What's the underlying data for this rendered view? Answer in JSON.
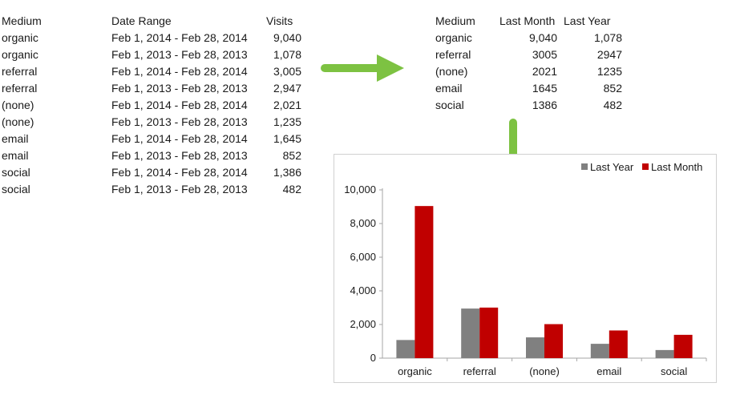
{
  "raw_table": {
    "headers": {
      "medium": "Medium",
      "date_range": "Date Range",
      "visits": "Visits"
    },
    "rows": [
      {
        "medium": "organic",
        "date_range": "Feb 1, 2014 - Feb 28, 2014",
        "visits": "9,040"
      },
      {
        "medium": "organic",
        "date_range": "Feb 1, 2013 - Feb 28, 2013",
        "visits": "1,078"
      },
      {
        "medium": "referral",
        "date_range": "Feb 1, 2014 - Feb 28, 2014",
        "visits": "3,005"
      },
      {
        "medium": "referral",
        "date_range": "Feb 1, 2013 - Feb 28, 2013",
        "visits": "2,947"
      },
      {
        "medium": "(none)",
        "date_range": "Feb 1, 2014 - Feb 28, 2014",
        "visits": "2,021"
      },
      {
        "medium": "(none)",
        "date_range": "Feb 1, 2013 - Feb 28, 2013",
        "visits": "1,235"
      },
      {
        "medium": "email",
        "date_range": "Feb 1, 2014 - Feb 28, 2014",
        "visits": "1,645"
      },
      {
        "medium": "email",
        "date_range": "Feb 1, 2013 - Feb 28, 2013",
        "visits": "852"
      },
      {
        "medium": "social",
        "date_range": "Feb 1, 2014 - Feb 28, 2014",
        "visits": "1,386"
      },
      {
        "medium": "social",
        "date_range": "Feb 1, 2013 - Feb 28, 2013",
        "visits": "482"
      }
    ]
  },
  "pivot_table": {
    "headers": {
      "medium": "Medium",
      "last_month": "Last Month",
      "last_year": "Last Year"
    },
    "rows": [
      {
        "medium": "organic",
        "last_month": "9,040",
        "last_year": "1,078"
      },
      {
        "medium": "referral",
        "last_month": "3005",
        "last_year": "2947"
      },
      {
        "medium": "(none)",
        "last_month": "2021",
        "last_year": "1235"
      },
      {
        "medium": "email",
        "last_month": "1645",
        "last_year": "852"
      },
      {
        "medium": "social",
        "last_month": "1386",
        "last_year": "482"
      }
    ]
  },
  "colors": {
    "arrow": "#7dc242",
    "last_year": "#808080",
    "last_month": "#c00000",
    "axis": "#a6a6a6"
  },
  "chart_data": {
    "type": "bar",
    "categories": [
      "organic",
      "referral",
      "(none)",
      "email",
      "social"
    ],
    "series": [
      {
        "name": "Last Year",
        "values": [
          1078,
          2947,
          1235,
          852,
          482
        ]
      },
      {
        "name": "Last Month",
        "values": [
          9040,
          3005,
          2021,
          1645,
          1386
        ]
      }
    ],
    "ylim": [
      0,
      10000
    ],
    "yticks": [
      0,
      2000,
      4000,
      6000,
      8000,
      10000
    ],
    "ytick_labels": [
      "0",
      "2,000",
      "4,000",
      "6,000",
      "8,000",
      "10,000"
    ],
    "title": "",
    "xlabel": "",
    "ylabel": "",
    "legend_position": "top-right",
    "grid": false
  }
}
